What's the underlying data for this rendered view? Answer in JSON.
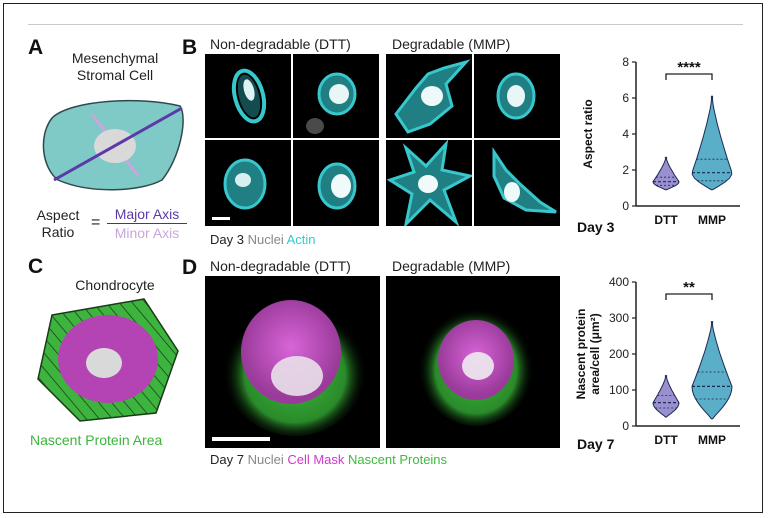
{
  "panel_a": {
    "label": "A",
    "title_line1": "Mesenchymal",
    "title_line2": "Stromal Cell",
    "aspect_line1": "Aspect",
    "aspect_line2": "Ratio",
    "equals": "=",
    "major_axis": "Major Axis",
    "minor_axis": "Minor Axis",
    "colors": {
      "cell": "#7fc9c7",
      "major": "#5b3aa8",
      "minor": "#c9a6dc",
      "nucleus": "#d9d9d9"
    }
  },
  "panel_b": {
    "label": "B",
    "left_title": "Non-degradable (DTT)",
    "right_title": "Degradable (MMP)",
    "legend_day": "Day 3",
    "legend_nuclei": "Nuclei",
    "legend_stain": "Actin",
    "stain_color": "#37c7cc"
  },
  "panel_c": {
    "label": "C",
    "title": "Chondrocyte",
    "caption": "Nascent Protein Area",
    "colors": {
      "protein": "#3db43d",
      "cytoplasm": "#b443b4",
      "nucleus": "#d9d9d9"
    }
  },
  "panel_d": {
    "label": "D",
    "left_title": "Non-degradable (DTT)",
    "right_title": "Degradable (MMP)",
    "legend_day": "Day 7",
    "legend_nuclei": "Nuclei",
    "legend_mask": "Cell Mask",
    "legend_protein": "Nascent Proteins",
    "mask_color": "#cc3acc",
    "protein_color": "#3dbb3d"
  },
  "chart_data": [
    {
      "type": "violin",
      "ylabel": "Aspect ratio",
      "categories": [
        "DTT",
        "MMP"
      ],
      "ylim": [
        0,
        8
      ],
      "yticks": [
        0,
        2,
        4,
        6,
        8
      ],
      "significance": "****",
      "day_label": "Day 3",
      "series": [
        {
          "category": "DTT",
          "min": 0.9,
          "max": 2.7,
          "median": 1.35,
          "q1": 1.15,
          "q3": 1.6
        },
        {
          "category": "MMP",
          "min": 0.9,
          "max": 6.1,
          "median": 1.85,
          "q1": 1.4,
          "q3": 2.6
        }
      ]
    },
    {
      "type": "violin",
      "ylabel": "Nascent protein area/cell (μm²)",
      "categories": [
        "DTT",
        "MMP"
      ],
      "ylim": [
        0,
        400
      ],
      "yticks": [
        0,
        100,
        200,
        300,
        400
      ],
      "significance": "**",
      "day_label": "Day 7",
      "series": [
        {
          "category": "DTT",
          "min": 25,
          "max": 140,
          "median": 65,
          "q1": 50,
          "q3": 85
        },
        {
          "category": "MMP",
          "min": 20,
          "max": 290,
          "median": 110,
          "q1": 75,
          "q3": 150
        }
      ]
    }
  ]
}
